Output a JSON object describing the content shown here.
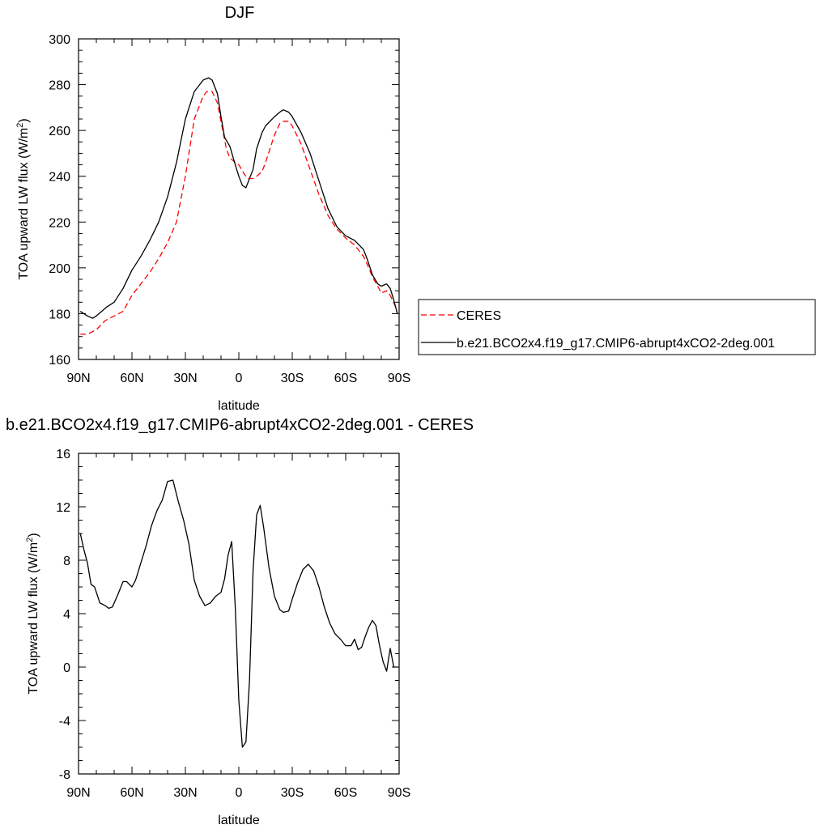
{
  "charts": {
    "top": {
      "title": "DJF",
      "xlabel": "latitude",
      "ylabel_main": "TOA upward LW flux (W/m",
      "ylabel_sup": "2",
      "ylabel_tail": ")",
      "xticks": [
        "90N",
        "60N",
        "30N",
        "0",
        "30S",
        "60S",
        "90S"
      ],
      "yticks": [
        "160",
        "180",
        "200",
        "220",
        "240",
        "260",
        "280",
        "300"
      ]
    },
    "bottom": {
      "title": "b.e21.BCO2x4.f19_g17.CMIP6-abrupt4xCO2-2deg.001 - CERES",
      "xlabel": "latitude",
      "ylabel_main": "TOA upward LW flux (W/m",
      "ylabel_sup": "2",
      "ylabel_tail": ")",
      "xticks": [
        "90N",
        "60N",
        "30N",
        "0",
        "30S",
        "60S",
        "90S"
      ],
      "yticks": [
        "-8",
        "-4",
        "0",
        "4",
        "8",
        "12",
        "16"
      ]
    }
  },
  "legend": {
    "ceres": "CERES",
    "model": "b.e21.BCO2x4.f19_g17.CMIP6-abrupt4xCO2-2deg.001"
  },
  "colors": {
    "ceres": "#ff0000",
    "model": "#000000"
  },
  "chart_data": [
    {
      "type": "line",
      "title": "DJF",
      "xlabel": "latitude",
      "ylabel": "TOA upward LW flux (W/m2)",
      "xlim": [
        90,
        -90
      ],
      "ylim": [
        160,
        300
      ],
      "legend_position": "right",
      "series": [
        {
          "name": "CERES",
          "style": "dashed",
          "color": "#ff0000",
          "x": [
            89,
            85,
            80,
            75,
            70,
            65,
            60,
            55,
            50,
            45,
            40,
            35,
            30,
            25,
            20,
            18,
            15,
            12,
            10,
            7,
            5,
            2,
            0,
            -3,
            -5,
            -8,
            -10,
            -13,
            -15,
            -20,
            -23,
            -25,
            -28,
            -30,
            -35,
            -40,
            -45,
            -50,
            -55,
            -60,
            -65,
            -70,
            -73,
            -75,
            -78,
            -80,
            -83,
            -85,
            -88,
            -89
          ],
          "y": [
            171,
            171,
            173,
            177,
            179,
            181,
            188,
            193,
            198,
            204,
            211,
            220,
            240,
            265,
            275,
            277,
            277,
            272,
            264,
            252,
            248,
            246,
            245,
            241,
            239,
            239,
            240,
            242,
            246,
            258,
            263,
            264,
            264,
            262,
            254,
            243,
            232,
            223,
            217,
            213,
            210,
            205,
            200,
            196,
            192,
            189,
            190,
            188,
            183,
            180
          ]
        },
        {
          "name": "b.e21.BCO2x4.f19_g17.CMIP6-abrupt4xCO2-2deg.001",
          "style": "solid",
          "color": "#000000",
          "x": [
            89,
            85,
            82,
            80,
            77,
            74,
            70,
            65,
            60,
            55,
            50,
            45,
            40,
            35,
            30,
            25,
            20,
            17,
            15,
            12,
            10,
            8,
            5,
            2,
            0,
            -2,
            -4,
            -6,
            -8,
            -10,
            -13,
            -15,
            -20,
            -23,
            -25,
            -28,
            -30,
            -35,
            -40,
            -45,
            -50,
            -55,
            -60,
            -65,
            -70,
            -72,
            -75,
            -78,
            -80,
            -83,
            -85,
            -87,
            -89
          ],
          "y": [
            181,
            179,
            178,
            179,
            181,
            183,
            185,
            191,
            199,
            205,
            212,
            220,
            231,
            246,
            265,
            277,
            282,
            283,
            282,
            276,
            266,
            257,
            253,
            245,
            240,
            236,
            235,
            239,
            243,
            252,
            259,
            262,
            266,
            268,
            269,
            268,
            266,
            259,
            250,
            238,
            226,
            218,
            214,
            212,
            208,
            204,
            197,
            193,
            192,
            193,
            191,
            186,
            180
          ]
        }
      ]
    },
    {
      "type": "line",
      "title": "b.e21.BCO2x4.f19_g17.CMIP6-abrupt4xCO2-2deg.001 - CERES",
      "xlabel": "latitude",
      "ylabel": "TOA upward LW flux (W/m2)",
      "xlim": [
        90,
        -90
      ],
      "ylim": [
        -8,
        16
      ],
      "series": [
        {
          "name": "b.e21.BCO2x4.f19_g17.CMIP6-abrupt4xCO2-2deg.001 - CERES",
          "style": "solid",
          "color": "#000000",
          "x": [
            89,
            87,
            85,
            83,
            81,
            78,
            75,
            73,
            71,
            68,
            65,
            63,
            60,
            58,
            55,
            52,
            49,
            46,
            43,
            40,
            37,
            34,
            31,
            28,
            25,
            22,
            19,
            16,
            13,
            10,
            8,
            6,
            4,
            2,
            0,
            -2,
            -4,
            -6,
            -8,
            -10,
            -12,
            -14,
            -17,
            -20,
            -23,
            -25,
            -28,
            -30,
            -33,
            -36,
            -39,
            -42,
            -45,
            -48,
            -51,
            -54,
            -57,
            -60,
            -63,
            -65,
            -67,
            -69,
            -71,
            -73,
            -75,
            -77,
            -79,
            -81,
            -83,
            -85,
            -87,
            -89
          ],
          "y": [
            10.0,
            8.8,
            7.8,
            6.2,
            6.0,
            4.8,
            4.6,
            4.4,
            4.5,
            5.4,
            6.4,
            6.4,
            6.0,
            6.5,
            7.8,
            9.1,
            10.6,
            11.7,
            12.5,
            13.9,
            14.0,
            12.4,
            11.0,
            9.2,
            6.5,
            5.3,
            4.6,
            4.8,
            5.3,
            5.6,
            6.6,
            8.4,
            9.4,
            4.5,
            -2.5,
            -6.0,
            -5.6,
            -1.0,
            7.2,
            11.4,
            12.1,
            10.4,
            7.4,
            5.3,
            4.3,
            4.1,
            4.2,
            5.1,
            6.3,
            7.3,
            7.7,
            7.2,
            6.0,
            4.5,
            3.3,
            2.5,
            2.1,
            1.6,
            1.6,
            2.1,
            1.3,
            1.5,
            2.3,
            3.0,
            3.5,
            3.1,
            1.6,
            0.4,
            -0.3,
            1.4,
            0.0,
            0.0
          ]
        }
      ]
    }
  ]
}
